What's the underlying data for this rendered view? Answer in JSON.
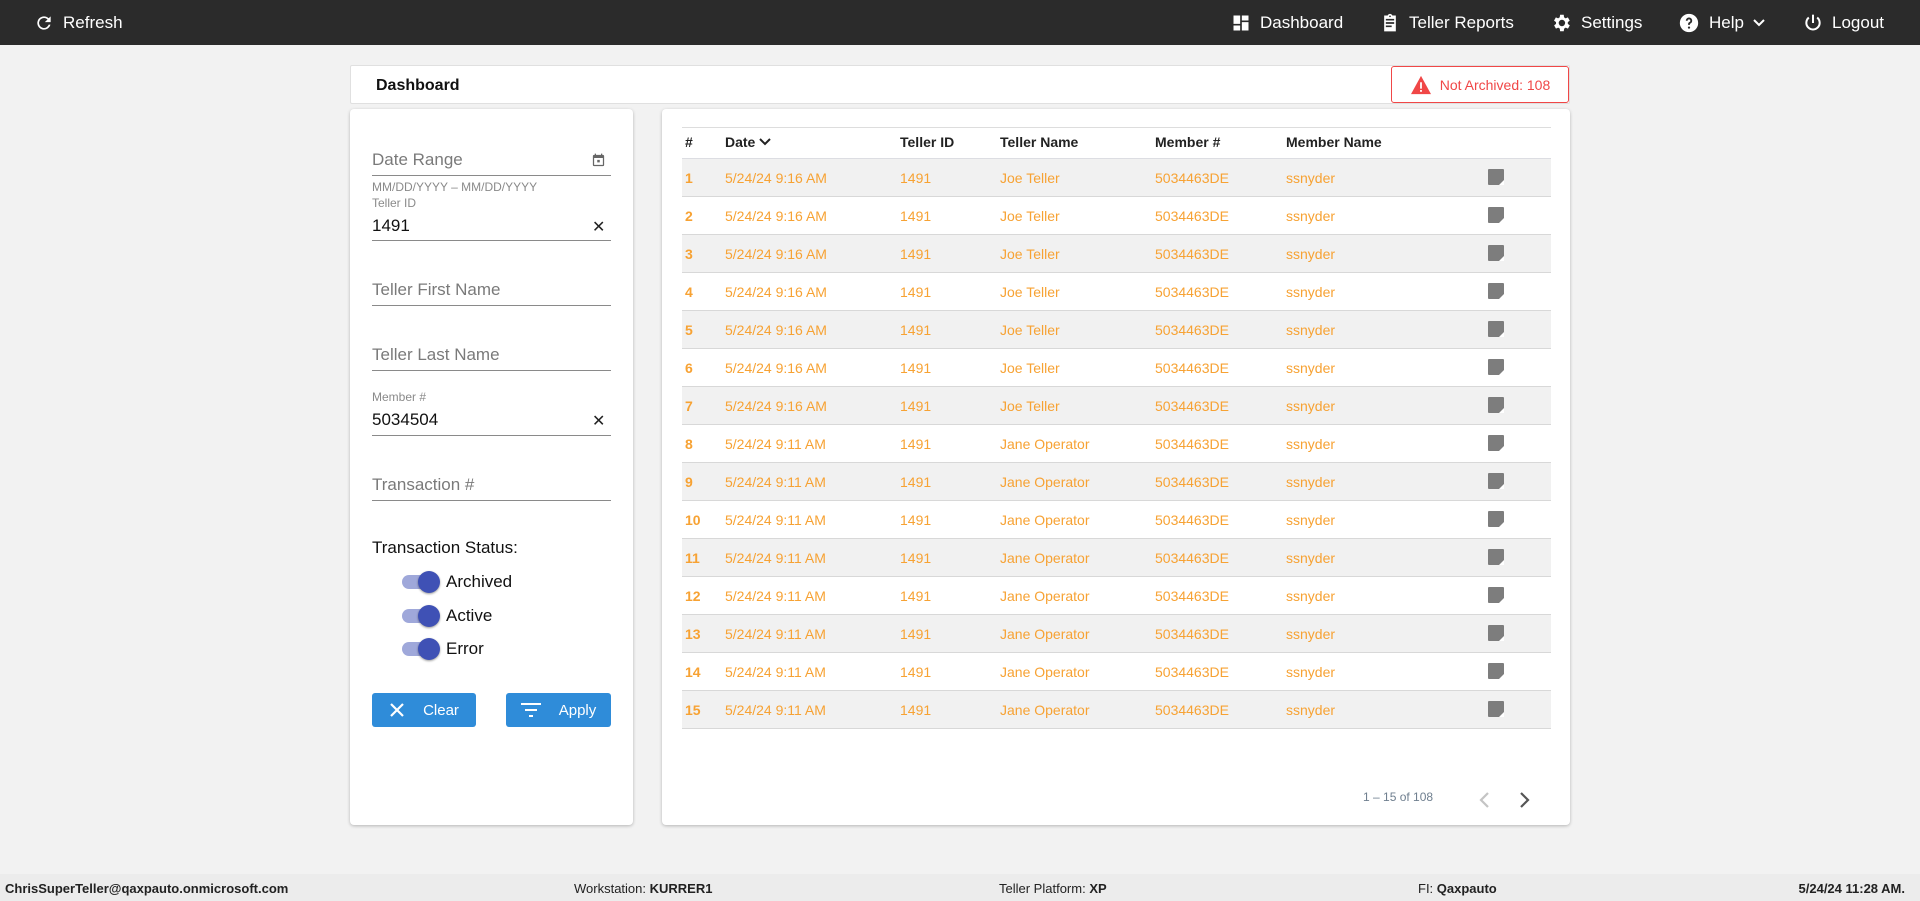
{
  "topbar": {
    "refresh": "Refresh",
    "dashboard": "Dashboard",
    "teller_reports": "Teller Reports",
    "settings": "Settings",
    "help": "Help",
    "logout": "Logout"
  },
  "page": {
    "title": "Dashboard",
    "badge": "Not Archived: 108"
  },
  "filters": {
    "date_range_placeholder": "Date Range",
    "date_hint": "MM/DD/YYYY – MM/DD/YYYY",
    "teller_id_label": "Teller ID",
    "teller_id_value": "1491",
    "first_name_placeholder": "Teller First Name",
    "last_name_placeholder": "Teller Last Name",
    "member_label": "Member #",
    "member_value": "5034504",
    "transaction_placeholder": "Transaction #",
    "status_label": "Transaction Status:",
    "statuses": [
      {
        "label": "Archived",
        "on": true
      },
      {
        "label": "Active",
        "on": true
      },
      {
        "label": "Error",
        "on": true
      }
    ],
    "clear": "Clear",
    "apply": "Apply"
  },
  "table": {
    "headers": [
      "#",
      "Date",
      "Teller ID",
      "Teller Name",
      "Member #",
      "Member Name"
    ],
    "sort": "descending",
    "rows": [
      [
        "1",
        "5/24/24 9:16 AM",
        "1491",
        "Joe Teller",
        "5034463DE",
        "ssnyder"
      ],
      [
        "2",
        "5/24/24 9:16 AM",
        "1491",
        "Joe Teller",
        "5034463DE",
        "ssnyder"
      ],
      [
        "3",
        "5/24/24 9:16 AM",
        "1491",
        "Joe Teller",
        "5034463DE",
        "ssnyder"
      ],
      [
        "4",
        "5/24/24 9:16 AM",
        "1491",
        "Joe Teller",
        "5034463DE",
        "ssnyder"
      ],
      [
        "5",
        "5/24/24 9:16 AM",
        "1491",
        "Joe Teller",
        "5034463DE",
        "ssnyder"
      ],
      [
        "6",
        "5/24/24 9:16 AM",
        "1491",
        "Joe Teller",
        "5034463DE",
        "ssnyder"
      ],
      [
        "7",
        "5/24/24 9:16 AM",
        "1491",
        "Joe Teller",
        "5034463DE",
        "ssnyder"
      ],
      [
        "8",
        "5/24/24 9:11 AM",
        "1491",
        "Jane Operator",
        "5034463DE",
        "ssnyder"
      ],
      [
        "9",
        "5/24/24 9:11 AM",
        "1491",
        "Jane Operator",
        "5034463DE",
        "ssnyder"
      ],
      [
        "10",
        "5/24/24 9:11 AM",
        "1491",
        "Jane Operator",
        "5034463DE",
        "ssnyder"
      ],
      [
        "11",
        "5/24/24 9:11 AM",
        "1491",
        "Jane Operator",
        "5034463DE",
        "ssnyder"
      ],
      [
        "12",
        "5/24/24 9:11 AM",
        "1491",
        "Jane Operator",
        "5034463DE",
        "ssnyder"
      ],
      [
        "13",
        "5/24/24 9:11 AM",
        "1491",
        "Jane Operator",
        "5034463DE",
        "ssnyder"
      ],
      [
        "14",
        "5/24/24 9:11 AM",
        "1491",
        "Jane Operator",
        "5034463DE",
        "ssnyder"
      ],
      [
        "15",
        "5/24/24 9:11 AM",
        "1491",
        "Jane Operator",
        "5034463DE",
        "ssnyder"
      ]
    ],
    "pagination": "1 – 15 of 108"
  },
  "footer": {
    "user": "ChrisSuperTeller@qaxpauto.onmicrosoft.com",
    "workstation_label": "Workstation: ",
    "workstation": "KURRER1",
    "platform_label": "Teller Platform: ",
    "platform": "XP",
    "fi_label": "FI: ",
    "fi": "Qaxpauto",
    "datetime": "5/24/24 11:28 AM."
  },
  "colors": {
    "accent": "#f7a233",
    "alert": "#f04747",
    "button": "#2f8cd9",
    "toggle": "#3f51b5"
  }
}
